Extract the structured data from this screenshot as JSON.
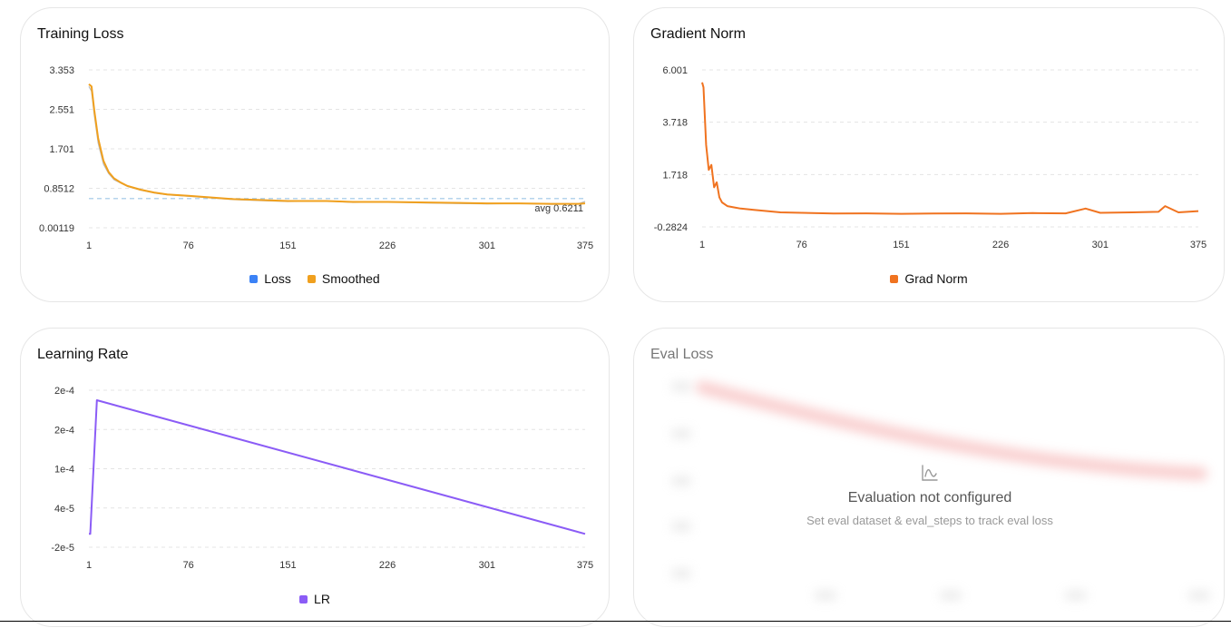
{
  "cards": {
    "loss": {
      "title": "Training Loss"
    },
    "grad": {
      "title": "Gradient Norm"
    },
    "lr": {
      "title": "Learning Rate"
    },
    "eval": {
      "title": "Eval Loss",
      "empty_heading": "Evaluation not configured",
      "empty_sub": "Set eval dataset & eval_steps to track eval loss",
      "icon": "chart-line-icon"
    }
  },
  "chart_data": [
    {
      "type": "line",
      "title": "Training Loss",
      "x_ticks": [
        "1",
        "76",
        "151",
        "226",
        "301",
        "375"
      ],
      "y_ticks": [
        "3.353",
        "2.551",
        "1.701",
        "0.8512",
        "0.00119"
      ],
      "xlim": [
        1,
        375
      ],
      "ylim": [
        0.00119,
        3.353
      ],
      "grid": true,
      "legend": "bottom-center",
      "series": [
        {
          "name": "Loss",
          "color": "#3b82f6",
          "x": [
            1,
            3,
            5,
            8,
            12,
            16,
            20,
            25,
            30,
            40,
            50,
            60,
            76,
            90,
            110,
            130,
            151,
            180,
            200,
            226,
            250,
            275,
            301,
            325,
            350,
            370,
            375
          ],
          "values": [
            3.0,
            2.9,
            2.4,
            1.8,
            1.35,
            1.15,
            1.02,
            0.95,
            0.88,
            0.8,
            0.74,
            0.7,
            0.67,
            0.64,
            0.6,
            0.58,
            0.56,
            0.57,
            0.54,
            0.55,
            0.53,
            0.52,
            0.51,
            0.52,
            0.5,
            0.51,
            0.56
          ]
        },
        {
          "name": "Smoothed",
          "color": "#f0a01e",
          "x": [
            1,
            3,
            5,
            8,
            12,
            16,
            20,
            25,
            30,
            40,
            50,
            60,
            76,
            90,
            110,
            130,
            151,
            180,
            200,
            226,
            250,
            275,
            301,
            325,
            350,
            370,
            375
          ],
          "values": [
            3.05,
            3.0,
            2.5,
            1.9,
            1.42,
            1.18,
            1.05,
            0.96,
            0.89,
            0.81,
            0.75,
            0.71,
            0.68,
            0.65,
            0.61,
            0.59,
            0.57,
            0.57,
            0.55,
            0.55,
            0.54,
            0.53,
            0.52,
            0.52,
            0.51,
            0.51,
            0.52
          ]
        }
      ],
      "reference_line": {
        "value": 0.6211,
        "label": "avg 0.6211",
        "color": "#9ec5e6"
      }
    },
    {
      "type": "line",
      "title": "Gradient Norm",
      "x_ticks": [
        "1",
        "76",
        "151",
        "226",
        "301",
        "375"
      ],
      "y_ticks": [
        "6.001",
        "3.718",
        "1.718",
        "-0.2824"
      ],
      "xlim": [
        1,
        375
      ],
      "ylim": [
        -0.2824,
        6.001
      ],
      "grid": true,
      "legend": "bottom-center",
      "series": [
        {
          "name": "Grad Norm",
          "color": "#f07320",
          "x": [
            1,
            2,
            4,
            6,
            8,
            10,
            12,
            14,
            16,
            20,
            25,
            30,
            40,
            50,
            60,
            76,
            100,
            125,
            151,
            175,
            200,
            226,
            250,
            275,
            290,
            301,
            325,
            345,
            350,
            360,
            375
          ],
          "values": [
            5.5,
            5.3,
            3.0,
            2.0,
            2.2,
            1.3,
            1.5,
            0.9,
            0.7,
            0.55,
            0.5,
            0.45,
            0.4,
            0.35,
            0.3,
            0.28,
            0.25,
            0.26,
            0.24,
            0.25,
            0.26,
            0.24,
            0.27,
            0.26,
            0.45,
            0.28,
            0.3,
            0.32,
            0.55,
            0.3,
            0.35
          ]
        }
      ]
    },
    {
      "type": "line",
      "title": "Learning Rate",
      "x_ticks": [
        "1",
        "76",
        "151",
        "226",
        "301",
        "375"
      ],
      "y_ticks": [
        "2e-4",
        "2e-4",
        "1e-4",
        "4e-5",
        "-2e-5"
      ],
      "xlim": [
        1,
        375
      ],
      "ylim": [
        -2e-05,
        0.000215
      ],
      "grid": true,
      "legend": "bottom-center",
      "series": [
        {
          "name": "LR",
          "color": "#8b5cf6",
          "x": [
            1,
            2,
            7,
            375
          ],
          "values": [
            0.0,
            0.0,
            0.0002,
            0.0
          ]
        }
      ]
    }
  ]
}
